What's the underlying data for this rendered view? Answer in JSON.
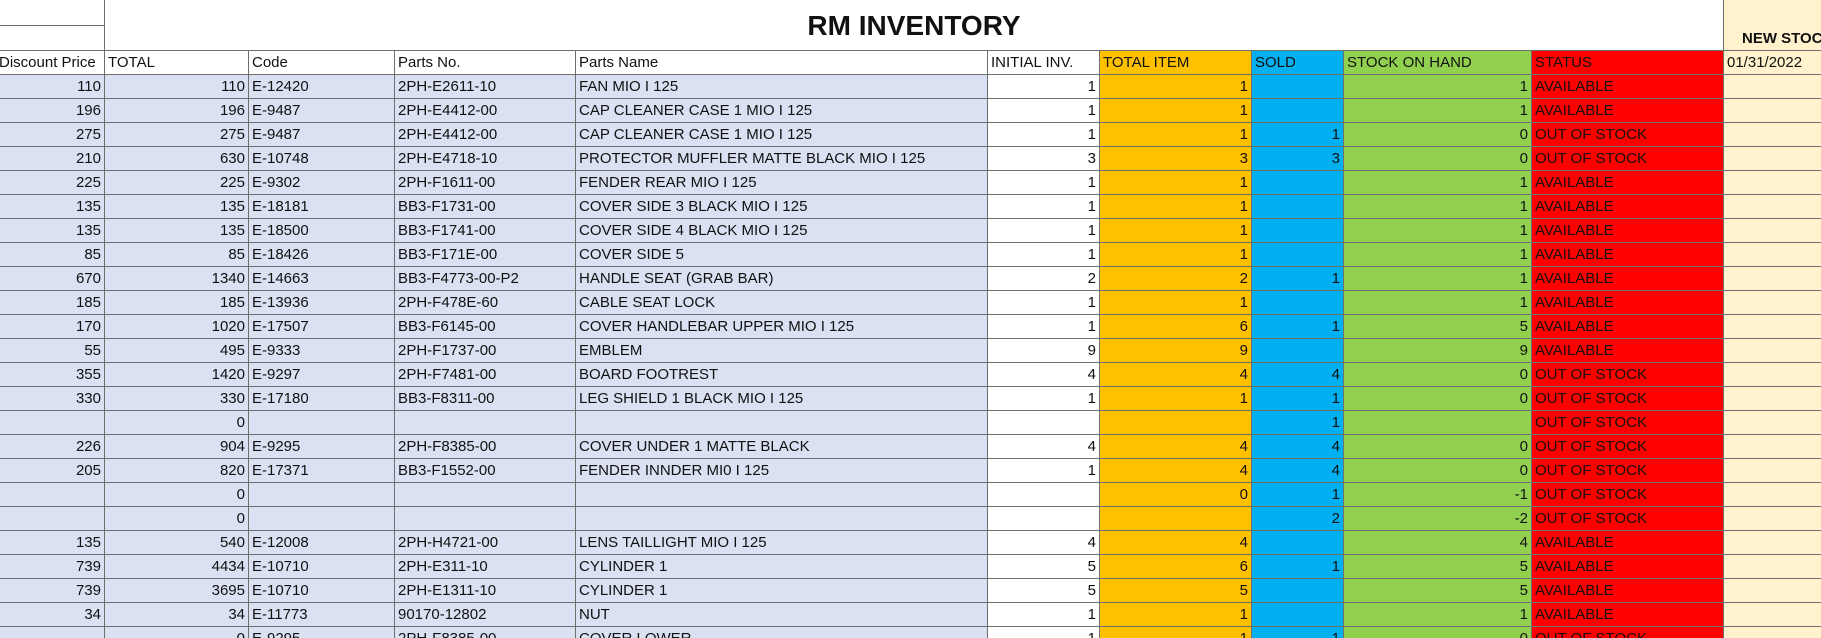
{
  "header": {
    "title": "RM INVENTORY",
    "new_stock": "NEW STOCK",
    "new_stock_date": "01/31/2022"
  },
  "table": {
    "columns": [
      "Discount Price",
      "TOTAL",
      "Code",
      "Parts No.",
      "Parts Name",
      "INITIAL INV.",
      "TOTAL ITEM",
      "SOLD",
      "STOCK ON HAND",
      "STATUS"
    ],
    "rows": [
      [
        110,
        110,
        "E-12420",
        "2PH-E2611-10",
        "FAN MIO I 125",
        1,
        1,
        null,
        1,
        "AVAILABLE"
      ],
      [
        196,
        196,
        "E-9487",
        "2PH-E4412-00",
        "CAP CLEANER CASE 1 MIO I 125",
        1,
        1,
        null,
        1,
        "AVAILABLE"
      ],
      [
        275,
        275,
        "E-9487",
        "2PH-E4412-00",
        "CAP CLEANER CASE 1 MIO I 125",
        1,
        1,
        1,
        0,
        "OUT OF STOCK"
      ],
      [
        210,
        630,
        "E-10748",
        "2PH-E4718-10",
        "PROTECTOR MUFFLER MATTE BLACK MIO I 125",
        3,
        3,
        3,
        0,
        "OUT OF STOCK"
      ],
      [
        225,
        225,
        "E-9302",
        "2PH-F1611-00",
        "FENDER REAR MIO I 125",
        1,
        1,
        null,
        1,
        "AVAILABLE"
      ],
      [
        135,
        135,
        "E-18181",
        "BB3-F1731-00",
        "COVER SIDE 3  BLACK MIO I 125",
        1,
        1,
        null,
        1,
        "AVAILABLE"
      ],
      [
        135,
        135,
        "E-18500",
        "BB3-F1741-00",
        "COVER SIDE 4 BLACK MIO I 125",
        1,
        1,
        null,
        1,
        "AVAILABLE"
      ],
      [
        85,
        85,
        "E-18426",
        "BB3-F171E-00",
        "COVER SIDE 5",
        1,
        1,
        null,
        1,
        "AVAILABLE"
      ],
      [
        670,
        1340,
        "E-14663",
        "BB3-F4773-00-P2",
        "HANDLE SEAT (GRAB BAR)",
        2,
        2,
        1,
        1,
        "AVAILABLE"
      ],
      [
        185,
        185,
        "E-13936",
        "2PH-F478E-60",
        "CABLE SEAT LOCK",
        1,
        1,
        null,
        1,
        "AVAILABLE"
      ],
      [
        170,
        1020,
        "E-17507",
        "BB3-F6145-00",
        "COVER HANDLEBAR UPPER MIO I 125",
        1,
        6,
        1,
        5,
        "AVAILABLE"
      ],
      [
        55,
        495,
        "E-9333",
        "2PH-F1737-00",
        "EMBLEM",
        9,
        9,
        null,
        9,
        "AVAILABLE"
      ],
      [
        355,
        1420,
        "E-9297",
        "2PH-F7481-00",
        "BOARD FOOTREST",
        4,
        4,
        4,
        0,
        "OUT OF STOCK"
      ],
      [
        330,
        330,
        "E-17180",
        "BB3-F8311-00",
        "LEG SHIELD 1 BLACK MIO I 125",
        1,
        1,
        1,
        0,
        "OUT OF STOCK"
      ],
      [
        null,
        0,
        null,
        null,
        null,
        null,
        null,
        1,
        null,
        "OUT OF STOCK"
      ],
      [
        226,
        904,
        "E-9295",
        "2PH-F8385-00",
        "COVER UNDER 1 MATTE BLACK",
        4,
        4,
        4,
        0,
        "OUT OF STOCK"
      ],
      [
        205,
        820,
        "E-17371",
        "BB3-F1552-00",
        "FENDER INNDER MI0 I 125",
        1,
        4,
        4,
        0,
        "OUT OF STOCK"
      ],
      [
        null,
        0,
        null,
        null,
        null,
        null,
        0,
        1,
        -1,
        "OUT OF STOCK"
      ],
      [
        null,
        0,
        null,
        null,
        null,
        null,
        null,
        2,
        -2,
        "OUT OF STOCK"
      ],
      [
        135,
        540,
        "E-12008",
        "2PH-H4721-00",
        "LENS TAILLIGHT MIO I 125",
        4,
        4,
        null,
        4,
        "AVAILABLE"
      ],
      [
        739,
        4434,
        "E-10710",
        "2PH-E311-10",
        "CYLINDER 1",
        5,
        6,
        1,
        5,
        "AVAILABLE"
      ],
      [
        739,
        3695,
        "E-10710",
        "2PH-E1311-10",
        "CYLINDER 1",
        5,
        5,
        null,
        5,
        "AVAILABLE"
      ],
      [
        34,
        34,
        "E-11773",
        "90170-12802",
        "NUT",
        1,
        1,
        null,
        1,
        "AVAILABLE"
      ],
      [
        null,
        0,
        "E-9295",
        "2PH-F8385-00",
        "COVER LOWER",
        1,
        1,
        1,
        0,
        "OUT OF STOCK"
      ]
    ]
  }
}
